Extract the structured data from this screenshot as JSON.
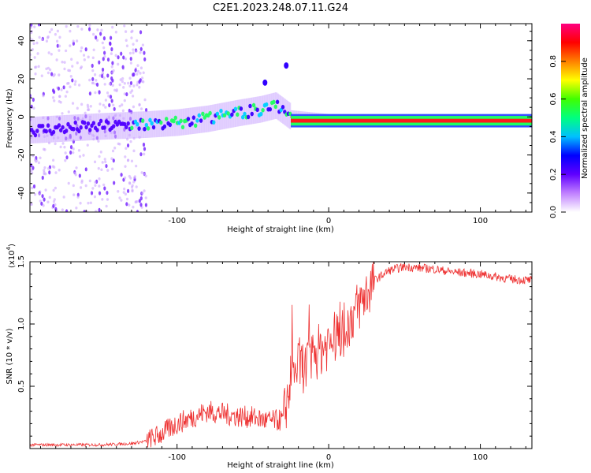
{
  "figure_title": "C2E1.2023.248.07.11.G24",
  "chart_data": [
    {
      "type": "heatmap",
      "title": "C2E1.2023.248.07.11.G24",
      "xlabel": "Height of straight line (km)",
      "ylabel": "Frequency (Hz)",
      "xlim": [
        -197,
        134
      ],
      "ylim": [
        -50,
        49
      ],
      "x_ticks": [
        -100,
        0,
        100
      ],
      "x_tick_labels": [
        "-100",
        "0",
        "100"
      ],
      "y_ticks": [
        -40,
        -20,
        0,
        20,
        40
      ],
      "y_tick_labels": [
        "-40",
        "-20",
        "0",
        "20",
        "40"
      ],
      "colorbar": {
        "label": "Normalized spectral amplitude",
        "range": [
          0,
          1
        ],
        "ticks": [
          0.0,
          0.2,
          0.4,
          0.6,
          0.8
        ],
        "tick_labels": [
          "0.0",
          "0.2",
          "0.4",
          "0.6",
          "0.8"
        ],
        "colors": [
          "#ffffff",
          "#c080ff",
          "#6000ff",
          "#0000ff",
          "#00c0ff",
          "#00ff80",
          "#40ff00",
          "#ffff00",
          "#ff8000",
          "#ff0000",
          "#ff0080"
        ]
      },
      "ridge": {
        "x": [
          -197,
          -150,
          -120,
          -100,
          -80,
          -60,
          -45,
          -35,
          -25,
          0,
          50,
          100,
          134
        ],
        "freq_hz": [
          -7,
          -5,
          -4,
          -3,
          -1,
          2,
          4,
          6,
          0,
          -2,
          -2,
          -2,
          -2
        ]
      },
      "scatter_region_x": [
        -197,
        -120
      ],
      "burst_points": [
        {
          "x": -42,
          "freq_hz": 18
        },
        {
          "x": -28,
          "freq_hz": 27
        }
      ]
    },
    {
      "type": "line",
      "xlabel": "Height of straight line (km)",
      "ylabel": "SNR (10 * v/v)",
      "y_multiplier_base": "x10",
      "y_multiplier_exp": "4",
      "xlim": [
        -197,
        134
      ],
      "ylim": [
        0,
        1.5
      ],
      "x_ticks": [
        -100,
        0,
        100
      ],
      "x_tick_labels": [
        "-100",
        "0",
        "100"
      ],
      "y_ticks": [
        0.5,
        1.0,
        1.5
      ],
      "y_tick_labels": [
        "0.5",
        "1.0",
        "1.5"
      ],
      "line_color": "#ee3333",
      "series": [
        {
          "name": "SNR",
          "x": [
            -197,
            -150,
            -130,
            -120,
            -110,
            -100,
            -90,
            -80,
            -70,
            -60,
            -50,
            -40,
            -30,
            -25,
            -20,
            -15,
            -10,
            0,
            10,
            20,
            30,
            40,
            50,
            60,
            70,
            80,
            90,
            100,
            110,
            120,
            134
          ],
          "y": [
            0.03,
            0.03,
            0.04,
            0.06,
            0.12,
            0.2,
            0.25,
            0.3,
            0.28,
            0.26,
            0.25,
            0.22,
            0.23,
            0.55,
            0.68,
            0.65,
            0.75,
            0.85,
            0.95,
            1.15,
            1.35,
            1.43,
            1.46,
            1.45,
            1.44,
            1.42,
            1.41,
            1.4,
            1.38,
            1.36,
            1.35
          ]
        }
      ]
    }
  ]
}
